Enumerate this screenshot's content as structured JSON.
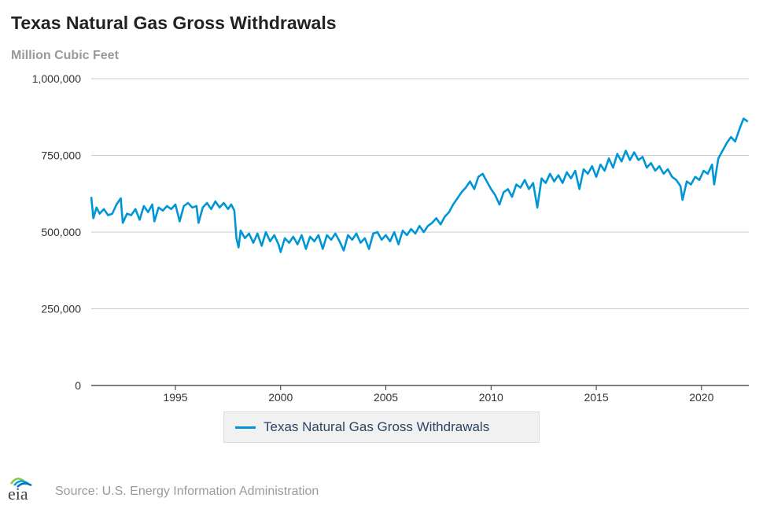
{
  "header": {
    "title": "Texas Natural Gas Gross Withdrawals",
    "units": "Million Cubic Feet"
  },
  "legend": {
    "label": "Texas Natural Gas Gross Withdrawals"
  },
  "footer": {
    "source": "Source: U.S. Energy Information Administration",
    "logo_text": "eia"
  },
  "colors": {
    "series": "#0096d6",
    "grid": "#cccccc",
    "axis": "#333333"
  },
  "chart_data": {
    "type": "line",
    "title": "Texas Natural Gas Gross Withdrawals",
    "ylabel": "Million Cubic Feet",
    "xlabel": "",
    "xlim": [
      1991.0,
      2022.25
    ],
    "ylim": [
      0,
      1000000
    ],
    "y_ticks": [
      0,
      250000,
      500000,
      750000,
      1000000
    ],
    "y_tick_labels": [
      "0",
      "250,000",
      "500,000",
      "750,000",
      "1,000,000"
    ],
    "x_ticks": [
      1995,
      2000,
      2005,
      2010,
      2015,
      2020
    ],
    "x_tick_labels": [
      "1995",
      "2000",
      "2005",
      "2010",
      "2015",
      "2020"
    ],
    "grid": true,
    "legend_position": "bottom",
    "series": [
      {
        "name": "Texas Natural Gas Gross Withdrawals",
        "points": [
          [
            1991.0,
            615000
          ],
          [
            1991.1,
            545000
          ],
          [
            1991.25,
            580000
          ],
          [
            1991.4,
            560000
          ],
          [
            1991.6,
            575000
          ],
          [
            1991.8,
            555000
          ],
          [
            1992.0,
            560000
          ],
          [
            1992.2,
            590000
          ],
          [
            1992.4,
            610000
          ],
          [
            1992.5,
            530000
          ],
          [
            1992.7,
            560000
          ],
          [
            1992.9,
            555000
          ],
          [
            1993.1,
            575000
          ],
          [
            1993.3,
            540000
          ],
          [
            1993.5,
            585000
          ],
          [
            1993.7,
            565000
          ],
          [
            1993.9,
            590000
          ],
          [
            1994.0,
            535000
          ],
          [
            1994.2,
            580000
          ],
          [
            1994.4,
            570000
          ],
          [
            1994.6,
            585000
          ],
          [
            1994.8,
            575000
          ],
          [
            1995.0,
            590000
          ],
          [
            1995.2,
            535000
          ],
          [
            1995.4,
            585000
          ],
          [
            1995.6,
            595000
          ],
          [
            1995.8,
            580000
          ],
          [
            1996.0,
            585000
          ],
          [
            1996.1,
            530000
          ],
          [
            1996.3,
            580000
          ],
          [
            1996.5,
            595000
          ],
          [
            1996.7,
            575000
          ],
          [
            1996.9,
            600000
          ],
          [
            1997.1,
            580000
          ],
          [
            1997.3,
            595000
          ],
          [
            1997.5,
            575000
          ],
          [
            1997.65,
            590000
          ],
          [
            1997.8,
            570000
          ],
          [
            1997.9,
            480000
          ],
          [
            1998.0,
            450000
          ],
          [
            1998.1,
            505000
          ],
          [
            1998.3,
            480000
          ],
          [
            1998.5,
            495000
          ],
          [
            1998.7,
            465000
          ],
          [
            1998.9,
            495000
          ],
          [
            1999.1,
            455000
          ],
          [
            1999.3,
            500000
          ],
          [
            1999.5,
            470000
          ],
          [
            1999.7,
            490000
          ],
          [
            1999.9,
            460000
          ],
          [
            2000.0,
            435000
          ],
          [
            2000.2,
            480000
          ],
          [
            2000.4,
            465000
          ],
          [
            2000.6,
            485000
          ],
          [
            2000.8,
            460000
          ],
          [
            2001.0,
            490000
          ],
          [
            2001.2,
            445000
          ],
          [
            2001.4,
            485000
          ],
          [
            2001.6,
            470000
          ],
          [
            2001.8,
            490000
          ],
          [
            2002.0,
            445000
          ],
          [
            2002.2,
            490000
          ],
          [
            2002.4,
            475000
          ],
          [
            2002.6,
            495000
          ],
          [
            2002.8,
            470000
          ],
          [
            2003.0,
            440000
          ],
          [
            2003.2,
            490000
          ],
          [
            2003.4,
            475000
          ],
          [
            2003.6,
            495000
          ],
          [
            2003.8,
            465000
          ],
          [
            2004.0,
            480000
          ],
          [
            2004.2,
            445000
          ],
          [
            2004.4,
            495000
          ],
          [
            2004.6,
            500000
          ],
          [
            2004.8,
            475000
          ],
          [
            2005.0,
            490000
          ],
          [
            2005.2,
            470000
          ],
          [
            2005.4,
            500000
          ],
          [
            2005.6,
            460000
          ],
          [
            2005.8,
            505000
          ],
          [
            2006.0,
            490000
          ],
          [
            2006.2,
            510000
          ],
          [
            2006.4,
            495000
          ],
          [
            2006.6,
            520000
          ],
          [
            2006.8,
            500000
          ],
          [
            2007.0,
            520000
          ],
          [
            2007.2,
            530000
          ],
          [
            2007.4,
            545000
          ],
          [
            2007.6,
            525000
          ],
          [
            2007.8,
            550000
          ],
          [
            2008.0,
            565000
          ],
          [
            2008.2,
            590000
          ],
          [
            2008.4,
            610000
          ],
          [
            2008.6,
            630000
          ],
          [
            2008.8,
            645000
          ],
          [
            2009.0,
            665000
          ],
          [
            2009.2,
            640000
          ],
          [
            2009.4,
            680000
          ],
          [
            2009.6,
            690000
          ],
          [
            2009.8,
            665000
          ],
          [
            2010.0,
            640000
          ],
          [
            2010.2,
            620000
          ],
          [
            2010.4,
            590000
          ],
          [
            2010.6,
            630000
          ],
          [
            2010.8,
            640000
          ],
          [
            2011.0,
            615000
          ],
          [
            2011.2,
            655000
          ],
          [
            2011.4,
            645000
          ],
          [
            2011.6,
            670000
          ],
          [
            2011.8,
            640000
          ],
          [
            2012.0,
            660000
          ],
          [
            2012.2,
            580000
          ],
          [
            2012.4,
            675000
          ],
          [
            2012.6,
            660000
          ],
          [
            2012.8,
            690000
          ],
          [
            2013.0,
            665000
          ],
          [
            2013.2,
            685000
          ],
          [
            2013.4,
            660000
          ],
          [
            2013.6,
            695000
          ],
          [
            2013.8,
            675000
          ],
          [
            2014.0,
            700000
          ],
          [
            2014.2,
            640000
          ],
          [
            2014.4,
            705000
          ],
          [
            2014.6,
            690000
          ],
          [
            2014.8,
            715000
          ],
          [
            2015.0,
            680000
          ],
          [
            2015.2,
            720000
          ],
          [
            2015.4,
            700000
          ],
          [
            2015.6,
            740000
          ],
          [
            2015.8,
            710000
          ],
          [
            2016.0,
            755000
          ],
          [
            2016.2,
            730000
          ],
          [
            2016.4,
            765000
          ],
          [
            2016.6,
            735000
          ],
          [
            2016.8,
            760000
          ],
          [
            2017.0,
            735000
          ],
          [
            2017.2,
            745000
          ],
          [
            2017.4,
            710000
          ],
          [
            2017.6,
            725000
          ],
          [
            2017.8,
            700000
          ],
          [
            2018.0,
            715000
          ],
          [
            2018.2,
            690000
          ],
          [
            2018.4,
            705000
          ],
          [
            2018.6,
            680000
          ],
          [
            2018.8,
            670000
          ],
          [
            2019.0,
            650000
          ],
          [
            2019.1,
            605000
          ],
          [
            2019.3,
            665000
          ],
          [
            2019.5,
            655000
          ],
          [
            2019.7,
            680000
          ],
          [
            2019.9,
            670000
          ],
          [
            2020.1,
            700000
          ],
          [
            2020.3,
            690000
          ],
          [
            2020.5,
            720000
          ],
          [
            2020.6,
            655000
          ],
          [
            2020.8,
            740000
          ],
          [
            2021.0,
            765000
          ],
          [
            2021.2,
            790000
          ],
          [
            2021.4,
            810000
          ],
          [
            2021.6,
            795000
          ],
          [
            2021.8,
            835000
          ],
          [
            2022.0,
            870000
          ],
          [
            2022.2,
            860000
          ]
        ]
      }
    ]
  }
}
